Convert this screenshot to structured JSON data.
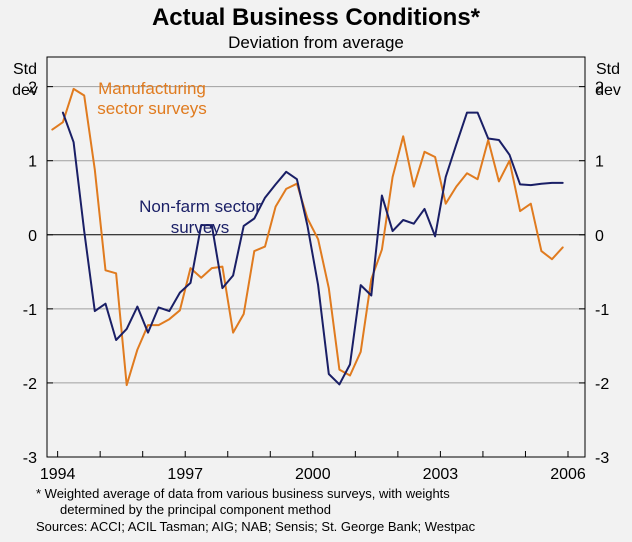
{
  "chart_data": {
    "type": "line",
    "title": "Actual Business Conditions*",
    "subtitle": "Deviation from average",
    "ylabel_left": [
      "Std",
      "dev"
    ],
    "ylabel_right": [
      "Std",
      "dev"
    ],
    "ylim": [
      -3,
      2.4
    ],
    "yticks": [
      2,
      1,
      0,
      -1,
      -2,
      -3
    ],
    "ytick_labels": [
      "2",
      "1",
      "0",
      "-1",
      "-2",
      "-3"
    ],
    "xlim": [
      1993.75,
      2006.4
    ],
    "xticks": [
      1994,
      1997,
      2000,
      2003,
      2006
    ],
    "xtick_labels": [
      "1994",
      "1997",
      "2000",
      "2003",
      "2006"
    ],
    "grid": true,
    "series": [
      {
        "name": "Manufacturing sector surveys",
        "label_lines": [
          "Manufacturing",
          "sector surveys"
        ],
        "color": "#e07b1f",
        "x": [
          1993.875,
          1994.125,
          1994.375,
          1994.625,
          1994.875,
          1995.125,
          1995.375,
          1995.625,
          1995.875,
          1996.125,
          1996.375,
          1996.625,
          1996.875,
          1997.125,
          1997.375,
          1997.625,
          1997.875,
          1998.125,
          1998.375,
          1998.625,
          1998.875,
          1999.125,
          1999.375,
          1999.625,
          1999.875,
          2000.125,
          2000.375,
          2000.625,
          2000.875,
          2001.125,
          2001.375,
          2001.625,
          2001.875,
          2002.125,
          2002.375,
          2002.625,
          2002.875,
          2003.125,
          2003.375,
          2003.625,
          2003.875,
          2004.125,
          2004.375,
          2004.625,
          2004.875,
          2005.125,
          2005.375,
          2005.625,
          2005.875
        ],
        "values": [
          1.42,
          1.52,
          1.97,
          1.88,
          0.88,
          -0.48,
          -0.52,
          -2.03,
          -1.55,
          -1.22,
          -1.22,
          -1.14,
          -1.02,
          -0.45,
          -0.58,
          -0.45,
          -0.43,
          -1.32,
          -1.07,
          -0.22,
          -0.16,
          0.38,
          0.62,
          0.69,
          0.22,
          -0.06,
          -0.72,
          -1.82,
          -1.9,
          -1.58,
          -0.6,
          -0.2,
          0.78,
          1.33,
          0.65,
          1.12,
          1.05,
          0.42,
          0.65,
          0.83,
          0.75,
          1.28,
          0.72,
          1.0,
          0.32,
          0.42,
          -0.22,
          -0.33,
          -0.17
        ]
      },
      {
        "name": "Non-farm sector surveys",
        "label_lines": [
          "Non-farm sector",
          "surveys"
        ],
        "color": "#1a1f66",
        "x": [
          1994.125,
          1994.375,
          1994.625,
          1994.875,
          1995.125,
          1995.375,
          1995.625,
          1995.875,
          1996.125,
          1996.375,
          1996.625,
          1996.875,
          1997.125,
          1997.375,
          1997.625,
          1997.875,
          1998.125,
          1998.375,
          1998.625,
          1998.875,
          1999.125,
          1999.375,
          1999.625,
          1999.875,
          2000.125,
          2000.375,
          2000.625,
          2000.875,
          2001.125,
          2001.375,
          2001.625,
          2001.875,
          2002.125,
          2002.375,
          2002.625,
          2002.875,
          2003.125,
          2003.375,
          2003.625,
          2003.875,
          2004.125,
          2004.375,
          2004.625,
          2004.875,
          2005.125,
          2005.375,
          2005.625,
          2005.875
        ],
        "values": [
          1.65,
          1.25,
          0.05,
          -1.03,
          -0.93,
          -1.42,
          -1.27,
          -0.97,
          -1.32,
          -0.98,
          -1.03,
          -0.78,
          -0.65,
          0.13,
          0.13,
          -0.72,
          -0.55,
          0.12,
          0.22,
          0.5,
          0.68,
          0.85,
          0.75,
          0.12,
          -0.68,
          -1.88,
          -2.02,
          -1.75,
          -0.68,
          -0.82,
          0.53,
          0.05,
          0.2,
          0.15,
          0.35,
          -0.02,
          0.78,
          1.22,
          1.65,
          1.65,
          1.3,
          1.28,
          1.08,
          0.68,
          0.67,
          0.69,
          0.7,
          0.7
        ]
      }
    ],
    "footnote_lines": [
      "*  Weighted average of data from various business surveys, with weights",
      "determined by the principal component method"
    ],
    "sources": "Sources: ACCI; ACIL Tasman; AIG; NAB; Sensis; St. George Bank; Westpac",
    "colors": {
      "background": "#f2f2f2",
      "grid": "#a0a0a0",
      "axis": "#000000"
    }
  }
}
